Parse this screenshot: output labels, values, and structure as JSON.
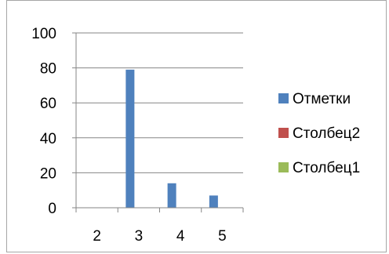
{
  "chart_data": {
    "type": "bar",
    "categories": [
      "2",
      "3",
      "4",
      "5"
    ],
    "series": [
      {
        "name": "Отметки",
        "values": [
          0,
          79,
          14,
          7
        ],
        "color": "#4f81bd"
      },
      {
        "name": "Столбец2",
        "values": [
          0,
          0,
          0,
          0
        ],
        "color": "#c0504d"
      },
      {
        "name": "Столбец1",
        "values": [
          0,
          0,
          0,
          0
        ],
        "color": "#9bbb59"
      }
    ],
    "yticks": [
      "0",
      "20",
      "40",
      "60",
      "80",
      "100"
    ],
    "ylim": [
      0,
      100
    ],
    "grid": true,
    "legend_position": "right"
  }
}
